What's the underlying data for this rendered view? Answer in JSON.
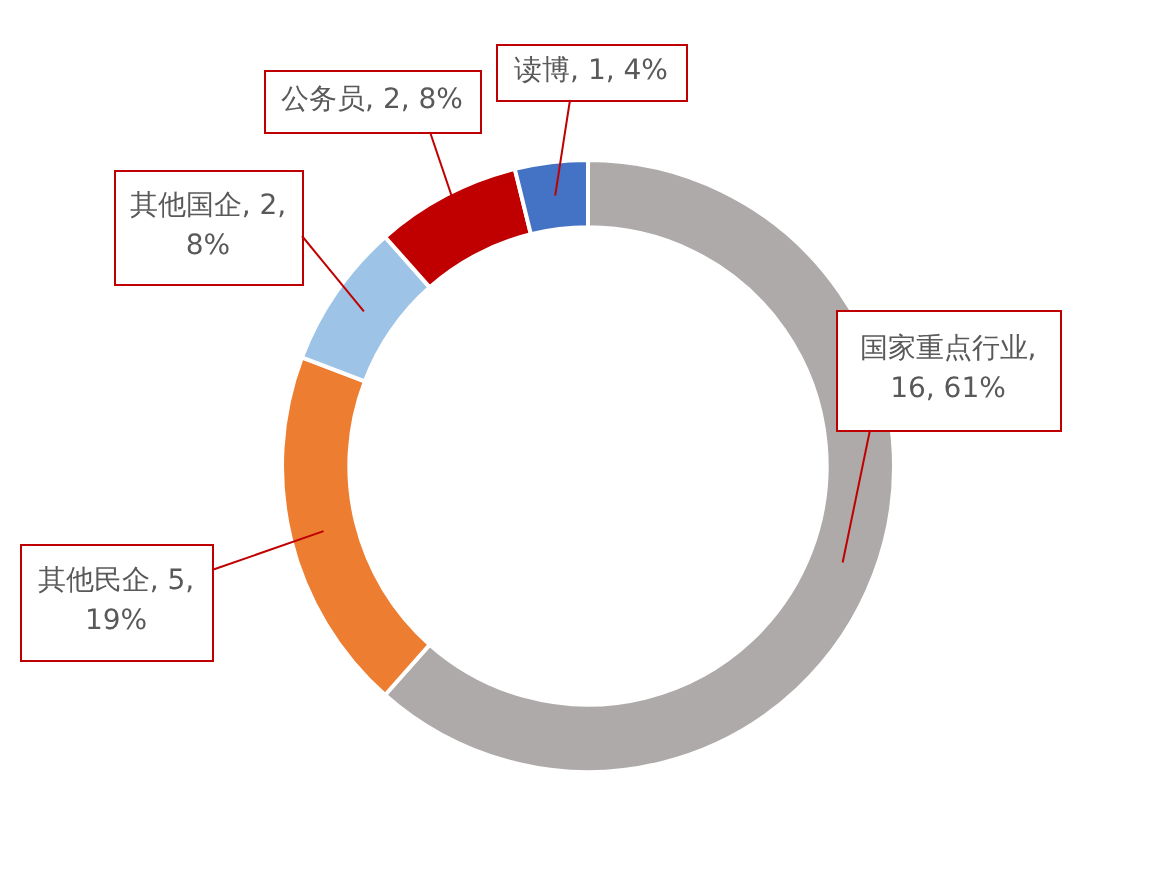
{
  "chart_data": {
    "type": "donut",
    "categories": [
      "国家重点行业",
      "其他民企",
      "其他国企",
      "公务员",
      "读博"
    ],
    "values": [
      16,
      5,
      2,
      2,
      1
    ],
    "colors": [
      "#aeaaaa",
      "#ed7d31",
      "#9dc3e6",
      "#c00000",
      "#4472c4"
    ],
    "value_labels": [
      ", 16, 61%",
      ", 5, 19%",
      ", 2, 8%",
      ", 2, 8%",
      ", 1, 4%"
    ],
    "legend": false
  }
}
